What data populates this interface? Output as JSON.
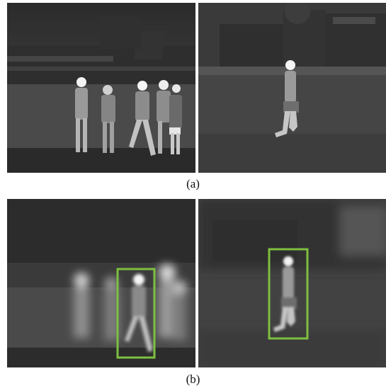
{
  "figure": {
    "captions": {
      "a": "(a)",
      "b": "(b)"
    },
    "colors": {
      "tracking_box": "#7fbf3f",
      "thermal_dark": "#1f1f1f",
      "thermal_mid": "#5a5a5a",
      "thermal_hot": "#f2f2f2"
    },
    "panels": [
      {
        "row": "a",
        "position": "left",
        "content": "thermal-crowd-scene"
      },
      {
        "row": "a",
        "position": "right",
        "content": "thermal-runner-scene"
      },
      {
        "row": "b",
        "position": "left",
        "content": "blurred-crowd-with-box"
      },
      {
        "row": "b",
        "position": "right",
        "content": "blurred-runner-with-box"
      }
    ]
  }
}
